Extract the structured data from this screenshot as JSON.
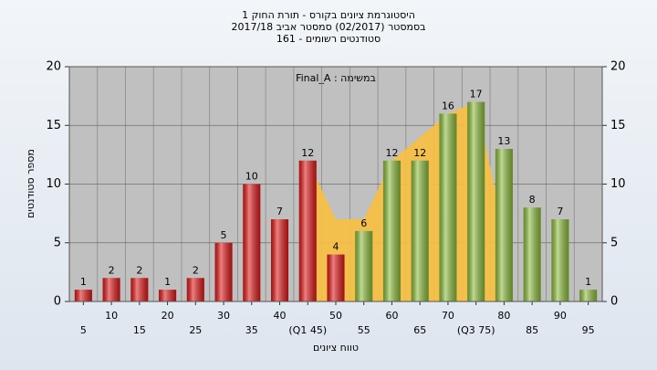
{
  "chart_data": {
    "type": "bar",
    "title": [
      "היסטוגרמת ציונים בקורס - תורת החוק 1",
      "בסמסטר  (02/2017)  סמסטר אביב 2017/18",
      "סטודנטים רשומים - 161"
    ],
    "annotation": "Final_A : במשימה",
    "xlabel": "טווח ציונים",
    "ylabel": "מספר סטודנטים",
    "categories": [
      "5",
      "10",
      "15",
      "20",
      "25",
      "30",
      "35",
      "40",
      "(Q1 45)",
      "50",
      "55",
      "60",
      "65",
      "70",
      "(Q3 75)",
      "80",
      "85",
      "90",
      "95"
    ],
    "values": [
      1,
      2,
      2,
      1,
      2,
      5,
      10,
      7,
      12,
      4,
      6,
      12,
      12,
      16,
      17,
      13,
      8,
      7,
      1
    ],
    "colors": [
      "#e01818",
      "#e01818",
      "#e01818",
      "#e01818",
      "#e01818",
      "#e01818",
      "#e01818",
      "#e01818",
      "#e01818",
      "#e01818",
      "#8cbc3c",
      "#8cbc3c",
      "#8cbc3c",
      "#8cbc3c",
      "#8cbc3c",
      "#8cbc3c",
      "#8cbc3c",
      "#8cbc3c",
      "#8cbc3c"
    ],
    "quartile_area": {
      "color": "#f8c040",
      "x": [
        8,
        9,
        10,
        11,
        12,
        13,
        14,
        15
      ],
      "values": [
        12,
        7,
        7,
        12,
        14,
        16,
        17,
        6
      ]
    },
    "ylim": [
      0,
      20
    ],
    "yticks": [
      0,
      5,
      10,
      15,
      20
    ],
    "y2lim": [
      0,
      20
    ],
    "y2ticks": [
      0,
      5,
      10,
      15,
      20
    ],
    "grid": true
  }
}
